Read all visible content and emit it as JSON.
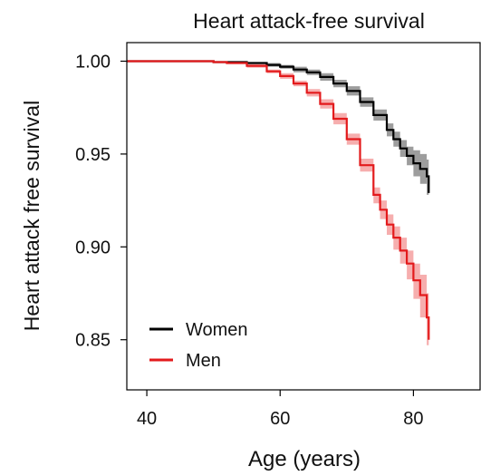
{
  "chart_data": {
    "type": "line",
    "title": "Heart attack-free survival",
    "xlabel": "Age (years)",
    "ylabel": "Heart attack free survival",
    "xlim": [
      37,
      90
    ],
    "ylim": [
      0.823,
      1.01
    ],
    "x_ticks": [
      40,
      60,
      80
    ],
    "y_ticks": [
      1.0,
      0.95,
      0.9,
      0.85
    ],
    "x_tick_labels": [
      "40",
      "60",
      "80"
    ],
    "y_tick_labels": [
      "1.00",
      "0.95",
      "0.90",
      "0.85"
    ],
    "grid": false,
    "legend_position": "bottom-left",
    "series": [
      {
        "name": "Women",
        "color": "#000000",
        "band_color": "#8c8c8c",
        "x": [
          37,
          45,
          50,
          55,
          58,
          60,
          62,
          64,
          66,
          68,
          70,
          72,
          74,
          76,
          77,
          78,
          79,
          80,
          81,
          82,
          82.3
        ],
        "y": [
          1.0,
          1.0,
          0.9995,
          0.999,
          0.998,
          0.997,
          0.9955,
          0.994,
          0.9915,
          0.988,
          0.984,
          0.978,
          0.971,
          0.963,
          0.958,
          0.953,
          0.949,
          0.945,
          0.942,
          0.938,
          0.929
        ],
        "ci_lower": [
          1.0,
          0.9998,
          0.9992,
          0.9985,
          0.997,
          0.996,
          0.994,
          0.9925,
          0.9895,
          0.986,
          0.9815,
          0.9755,
          0.968,
          0.9595,
          0.954,
          0.9485,
          0.944,
          0.938,
          0.934,
          0.928,
          0.918
        ],
        "ci_upper": [
          1.0,
          1.0,
          0.9998,
          0.9995,
          0.999,
          0.998,
          0.997,
          0.9955,
          0.9935,
          0.99,
          0.9865,
          0.9805,
          0.974,
          0.9665,
          0.962,
          0.9575,
          0.954,
          0.952,
          0.95,
          0.947,
          0.94
        ]
      },
      {
        "name": "Men",
        "color": "#e31a1c",
        "band_color": "#f4a0a0",
        "x": [
          37,
          45,
          50,
          52,
          55,
          58,
          60,
          62,
          64,
          66,
          68,
          70,
          72,
          74,
          75,
          76,
          77,
          78,
          79,
          80,
          81,
          82,
          82.3
        ],
        "y": [
          1.0,
          1.0,
          0.9995,
          0.999,
          0.9975,
          0.9945,
          0.992,
          0.988,
          0.983,
          0.977,
          0.969,
          0.958,
          0.944,
          0.928,
          0.92,
          0.912,
          0.905,
          0.898,
          0.891,
          0.882,
          0.874,
          0.862,
          0.85
        ],
        "ci_lower": [
          1.0,
          0.9998,
          0.999,
          0.9985,
          0.9965,
          0.9935,
          0.9905,
          0.9865,
          0.981,
          0.9745,
          0.966,
          0.955,
          0.9405,
          0.9235,
          0.915,
          0.9065,
          0.8985,
          0.891,
          0.8825,
          0.872,
          0.862,
          0.847,
          0.83
        ],
        "ci_upper": [
          1.0,
          1.0,
          0.9998,
          0.9995,
          0.9985,
          0.9955,
          0.9935,
          0.9895,
          0.985,
          0.9795,
          0.972,
          0.961,
          0.9475,
          0.932,
          0.925,
          0.9175,
          0.911,
          0.905,
          0.898,
          0.891,
          0.885,
          0.875,
          0.868
        ]
      }
    ]
  }
}
